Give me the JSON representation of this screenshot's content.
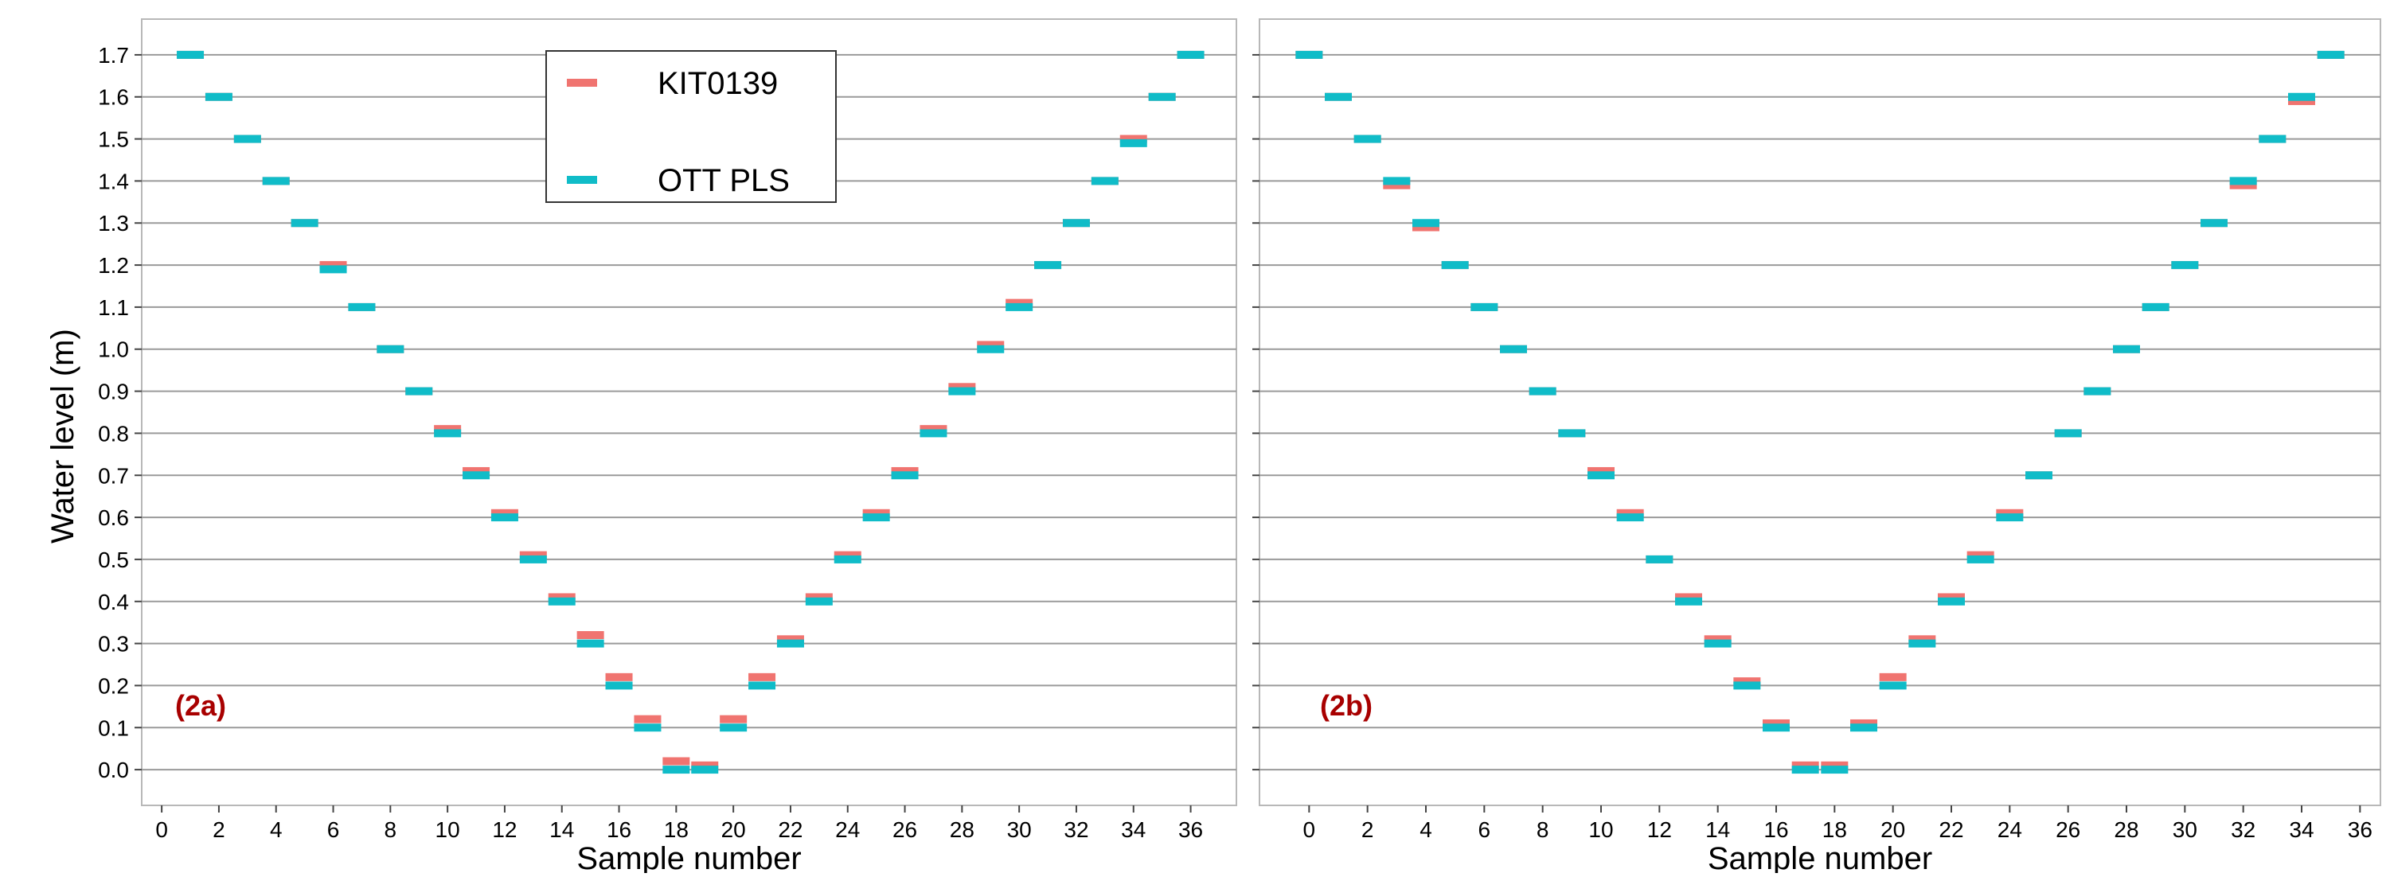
{
  "y_axis_label": "Water level (m)",
  "colors": {
    "kit": "#f07470",
    "ott": "#10bcc8",
    "panel_label": "#a80000",
    "grid": "#9a9a9a",
    "frame": "#b8b8b8"
  },
  "legend": {
    "placement": "top-center-left",
    "entries": [
      "KIT0139",
      "OTT PLS"
    ]
  },
  "chart_data": [
    {
      "type": "scatter",
      "panel_label": "(2a)",
      "xlabel": "Sample number",
      "ylabel": "Water level (m)",
      "xlim": [
        -0.7,
        37.6
      ],
      "ylim": [
        -0.085,
        1.785
      ],
      "x_ticks": [
        0,
        2,
        4,
        6,
        8,
        10,
        12,
        14,
        16,
        18,
        20,
        22,
        24,
        26,
        28,
        30,
        32,
        34,
        36
      ],
      "x_tick_labels": [
        "0",
        "2",
        "4",
        "6",
        "8",
        "10",
        "12",
        "14",
        "16",
        "18",
        "20",
        "22",
        "24",
        "26",
        "28",
        "30",
        "32",
        "34",
        "36"
      ],
      "y_ticks": [
        0.0,
        0.1,
        0.2,
        0.3,
        0.4,
        0.5,
        0.6,
        0.7,
        0.8,
        0.9,
        1.0,
        1.1,
        1.2,
        1.3,
        1.4,
        1.5,
        1.6,
        1.7
      ],
      "y_tick_labels": [
        "0.0",
        "0.1",
        "0.2",
        "0.3",
        "0.4",
        "0.5",
        "0.6",
        "0.7",
        "0.8",
        "0.9",
        "1.0",
        "1.1",
        "1.2",
        "1.3",
        "1.4",
        "1.5",
        "1.6",
        "1.7"
      ],
      "grid": "horizontal",
      "legend": true,
      "x": [
        1,
        2,
        3,
        4,
        5,
        6,
        7,
        8,
        9,
        10,
        11,
        12,
        13,
        14,
        15,
        16,
        17,
        18,
        19,
        20,
        21,
        22,
        23,
        24,
        25,
        26,
        27,
        28,
        29,
        30,
        31,
        32,
        33,
        34,
        35,
        36
      ],
      "series": [
        {
          "name": "KIT0139",
          "color": "#f07470",
          "values": [
            1.7,
            1.6,
            1.5,
            1.4,
            1.3,
            1.2,
            1.1,
            1.0,
            0.9,
            0.81,
            0.71,
            0.61,
            0.51,
            0.41,
            0.32,
            0.22,
            0.12,
            0.02,
            0.01,
            0.12,
            0.22,
            0.31,
            0.41,
            0.51,
            0.61,
            0.71,
            0.81,
            0.91,
            1.01,
            1.11,
            1.2,
            1.3,
            1.4,
            1.5,
            1.6,
            1.7
          ]
        },
        {
          "name": "OTT PLS",
          "color": "#10bcc8",
          "values": [
            1.7,
            1.6,
            1.5,
            1.4,
            1.3,
            1.19,
            1.1,
            1.0,
            0.9,
            0.8,
            0.7,
            0.6,
            0.5,
            0.4,
            0.3,
            0.2,
            0.1,
            0.0,
            0.0,
            0.1,
            0.2,
            0.3,
            0.4,
            0.5,
            0.6,
            0.7,
            0.8,
            0.9,
            1.0,
            1.1,
            1.2,
            1.3,
            1.4,
            1.49,
            1.6,
            1.7
          ]
        }
      ]
    },
    {
      "type": "scatter",
      "panel_label": "(2b)",
      "xlabel": "Sample number",
      "ylabel": "",
      "xlim": [
        -1.7,
        36.7
      ],
      "ylim": [
        -0.085,
        1.785
      ],
      "x_ticks": [
        0,
        2,
        4,
        6,
        8,
        10,
        12,
        14,
        16,
        18,
        20,
        22,
        24,
        26,
        28,
        30,
        32,
        34,
        36
      ],
      "x_tick_labels": [
        "0",
        "2",
        "4",
        "6",
        "8",
        "10",
        "12",
        "14",
        "16",
        "18",
        "20",
        "22",
        "24",
        "26",
        "28",
        "30",
        "32",
        "34",
        "36"
      ],
      "y_ticks": [
        0.0,
        0.1,
        0.2,
        0.3,
        0.4,
        0.5,
        0.6,
        0.7,
        0.8,
        0.9,
        1.0,
        1.1,
        1.2,
        1.3,
        1.4,
        1.5,
        1.6,
        1.7
      ],
      "y_tick_labels": [],
      "grid": "horizontal",
      "legend": false,
      "x": [
        0,
        1,
        2,
        3,
        4,
        5,
        6,
        7,
        8,
        9,
        10,
        11,
        12,
        13,
        14,
        15,
        16,
        17,
        18,
        19,
        20,
        21,
        22,
        23,
        24,
        25,
        26,
        27,
        28,
        29,
        30,
        31,
        32,
        33,
        34,
        35
      ],
      "series": [
        {
          "name": "KIT0139",
          "color": "#f07470",
          "values": [
            1.7,
            1.6,
            1.5,
            1.39,
            1.29,
            1.2,
            1.1,
            1.0,
            0.9,
            0.8,
            0.71,
            0.61,
            0.5,
            0.41,
            0.31,
            0.21,
            0.11,
            0.01,
            0.01,
            0.11,
            0.22,
            0.31,
            0.41,
            0.51,
            0.61,
            0.7,
            0.8,
            0.9,
            1.0,
            1.1,
            1.2,
            1.3,
            1.39,
            1.5,
            1.59,
            1.7
          ]
        },
        {
          "name": "OTT PLS",
          "color": "#10bcc8",
          "values": [
            1.7,
            1.6,
            1.5,
            1.4,
            1.3,
            1.2,
            1.1,
            1.0,
            0.9,
            0.8,
            0.7,
            0.6,
            0.5,
            0.4,
            0.3,
            0.2,
            0.1,
            0.0,
            0.0,
            0.1,
            0.2,
            0.3,
            0.4,
            0.5,
            0.6,
            0.7,
            0.8,
            0.9,
            1.0,
            1.1,
            1.2,
            1.3,
            1.4,
            1.5,
            1.6,
            1.7
          ]
        }
      ]
    }
  ]
}
